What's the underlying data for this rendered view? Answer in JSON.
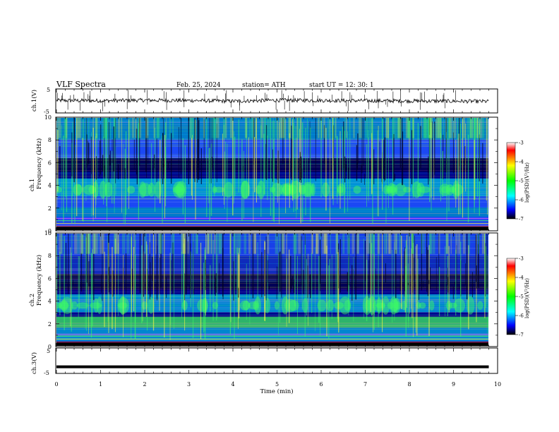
{
  "header": {
    "title": "VLF  Spectra",
    "date": "Feb. 25, 2024",
    "station": "station= ATH",
    "start": "start  UT  =   12: 30: 1"
  },
  "colorbar": {
    "label": "log(PSD)(V²/Hz)",
    "ticks": [
      "-3",
      "-4",
      "-5",
      "-6",
      "-7"
    ]
  },
  "chart_data": [
    {
      "type": "line",
      "ylabel": "ch.1(V)",
      "ylim": [
        -5,
        5
      ],
      "ytick_labels": [
        "5",
        "-5"
      ],
      "xlim": [
        0,
        10
      ],
      "series": [
        {
          "x": [
            0,
            1,
            2,
            3,
            4,
            5,
            6,
            7,
            8,
            9,
            9.8
          ],
          "values": [
            0.2,
            0.1,
            0.3,
            0.2,
            -0.1,
            0.3,
            0.2,
            0.1,
            0.0,
            -0.1,
            -0.2
          ]
        }
      ]
    },
    {
      "type": "heatmap",
      "ylabel": [
        "ch.1",
        "Frequency  (kHz)"
      ],
      "ylim": [
        0,
        10
      ],
      "ytick_labels": [
        "0",
        "2",
        "4",
        "6",
        "8",
        "10"
      ],
      "xlim": [
        0,
        10
      ],
      "data_end_min": 9.8
    },
    {
      "type": "heatmap",
      "ylabel": [
        "ch.2",
        "Frequency  (kHz)"
      ],
      "ylim": [
        0,
        10
      ],
      "ytick_labels": [
        "0",
        "2",
        "4",
        "6",
        "8",
        "10"
      ],
      "xlim": [
        0,
        10
      ],
      "data_end_min": 9.8
    },
    {
      "type": "line",
      "ylabel": "ch.3(V)",
      "ylim": [
        -5,
        5
      ],
      "ytick_labels": [
        "5",
        "-5"
      ],
      "xlim": [
        0,
        10
      ],
      "series": [
        {
          "x": [
            0,
            9.8
          ],
          "values": [
            -2.4,
            -2.4
          ]
        }
      ]
    }
  ],
  "xaxis": {
    "label": "Time  (min)",
    "tick_labels": [
      "0",
      "1",
      "2",
      "3",
      "4",
      "5",
      "6",
      "7",
      "8",
      "9",
      "10"
    ]
  },
  "colors": {
    "background": "#000080",
    "spectrum_dark": "#00008b",
    "spectrum_mid": "#1e50ff",
    "spectrum_cyan": "#00e0ff",
    "spectrum_green": "#40ff60",
    "spectrum_yellow": "#ffff40"
  }
}
